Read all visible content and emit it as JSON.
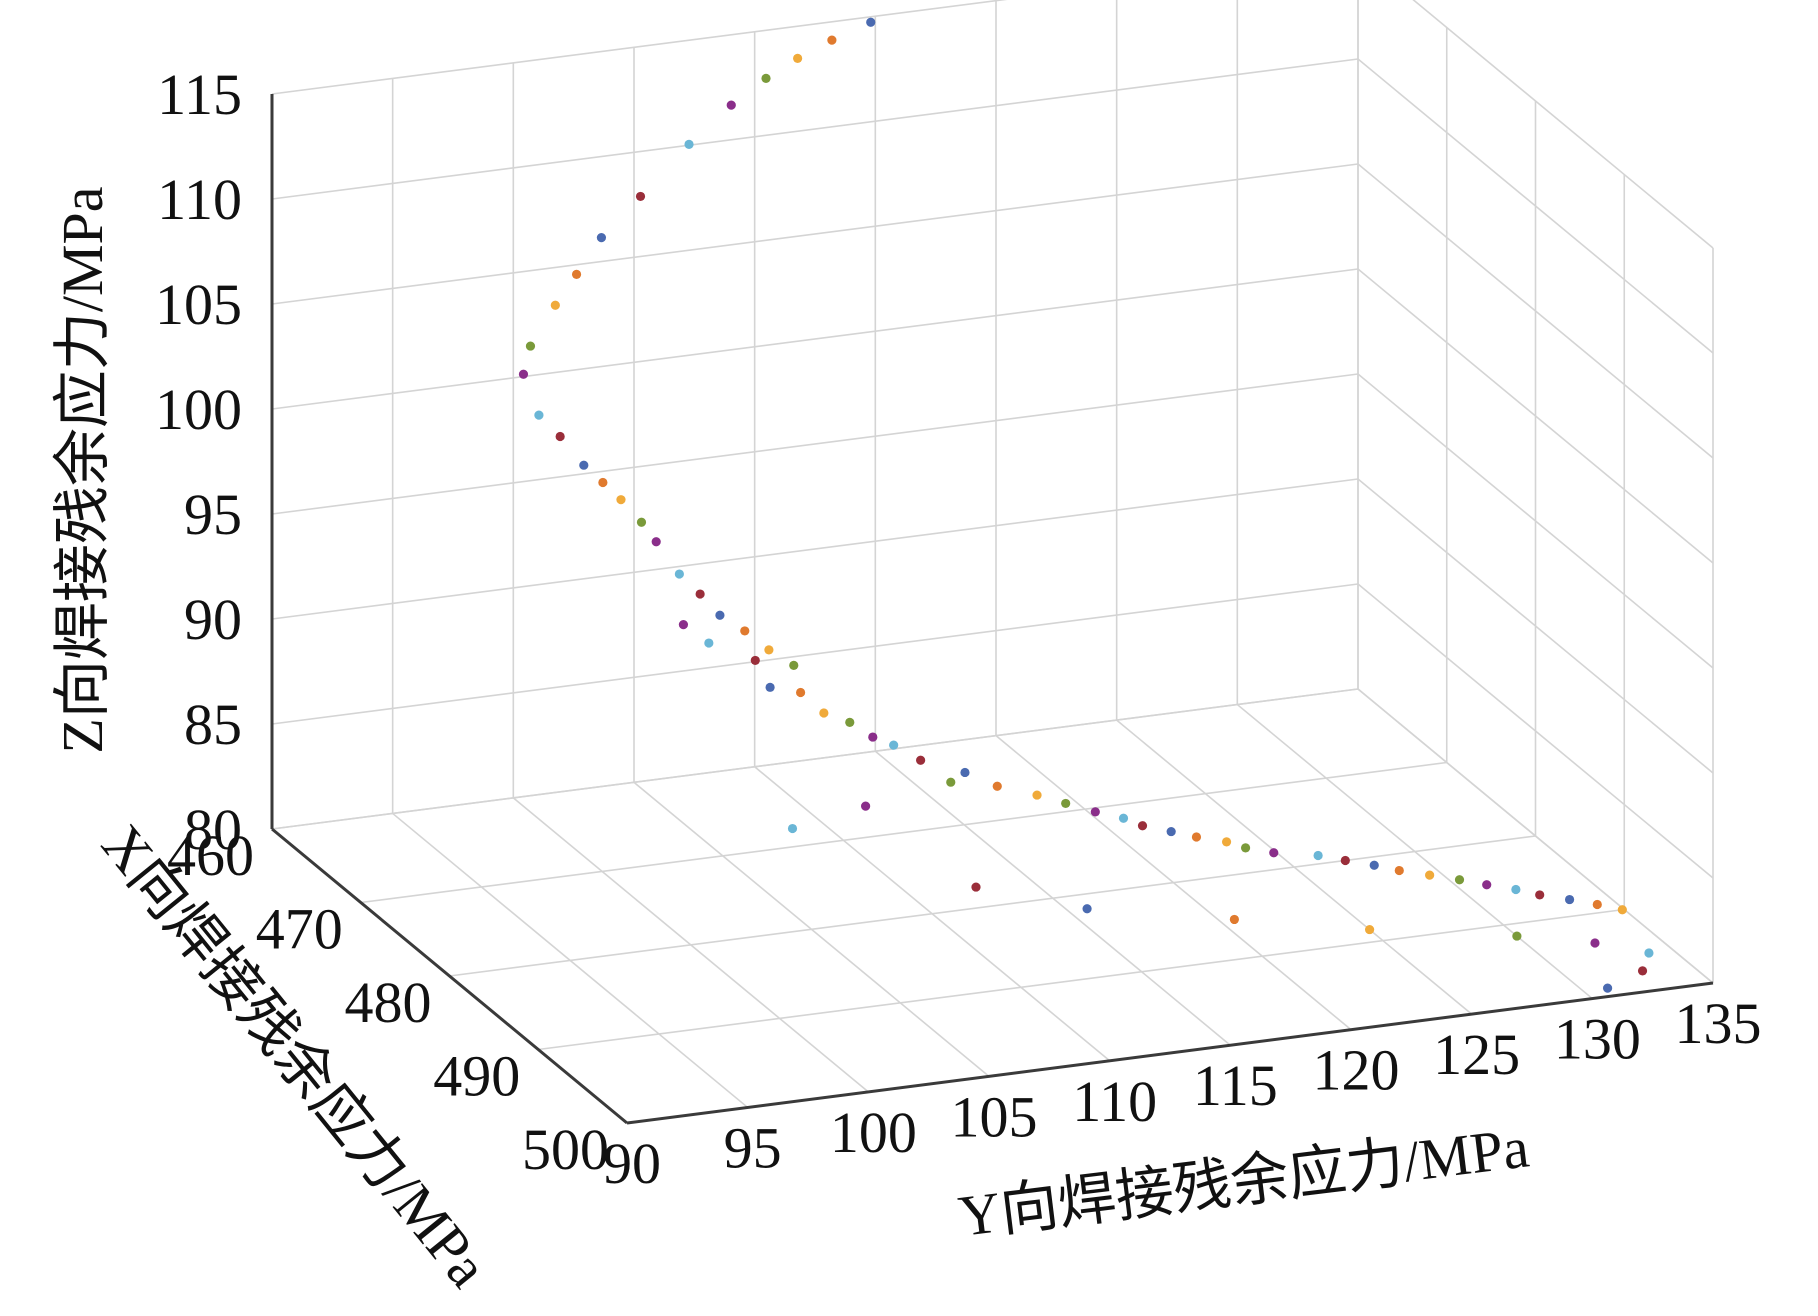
{
  "chart_data": {
    "type": "scatter",
    "dimensions": 3,
    "xlabel": "X向焊接残余应力/MPa",
    "ylabel": "Y向焊接残余应力/MPa",
    "zlabel": "Z向焊接残余应力/MPa",
    "xlim": [
      460,
      500
    ],
    "ylim": [
      90,
      135
    ],
    "zlim": [
      80,
      115
    ],
    "x_ticks": [
      "460",
      "470",
      "480",
      "490",
      "500"
    ],
    "y_ticks": [
      "90",
      "95",
      "100",
      "105",
      "110",
      "115",
      "120",
      "125",
      "130",
      "135"
    ],
    "z_ticks": [
      "80",
      "85",
      "90",
      "95",
      "100",
      "105",
      "110",
      "115"
    ],
    "grid": true,
    "marker_colors": [
      "#4a6ab0",
      "#e07a2e",
      "#f0aa3a",
      "#7a9a3a",
      "#8a2e8a",
      "#6ab6d6",
      "#9a2e3a"
    ],
    "points": [
      [
        460.0,
        114.81,
        114.74
      ],
      [
        460.0,
        113.2,
        114.13
      ],
      [
        460.0,
        111.78,
        113.47
      ],
      [
        460.0,
        110.47,
        112.71
      ],
      [
        460.0,
        109.03,
        111.65
      ],
      [
        460.0,
        107.28,
        110.04
      ],
      [
        460.0,
        105.27,
        107.86
      ],
      [
        460.0,
        103.65,
        106.14
      ],
      [
        460.0,
        102.62,
        104.54
      ],
      [
        460.0,
        101.74,
        103.2
      ],
      [
        460.0,
        100.71,
        101.41
      ],
      [
        460.0,
        100.42,
        100.11
      ],
      [
        460.0,
        101.06,
        98.07
      ],
      [
        460.0,
        101.94,
        96.92
      ],
      [
        460.0,
        102.92,
        95.41
      ],
      [
        460.0,
        103.71,
        94.47
      ],
      [
        460.0,
        104.46,
        93.54
      ],
      [
        460.0,
        105.31,
        92.34
      ],
      [
        460.0,
        105.92,
        91.32
      ],
      [
        460.0,
        106.88,
        89.64
      ],
      [
        460.0,
        107.74,
        88.56
      ],
      [
        460.0,
        108.56,
        87.43
      ],
      [
        460.0,
        109.59,
        86.53
      ],
      [
        460.0,
        110.59,
        85.48
      ],
      [
        460.0,
        111.62,
        84.59
      ],
      [
        461.0,
        106.68,
        87.61
      ],
      [
        461.5,
        107.55,
        86.78
      ],
      [
        462.0,
        109.29,
        85.87
      ],
      [
        462.5,
        109.72,
        84.7
      ],
      [
        463.0,
        110.8,
        84.47
      ],
      [
        463.5,
        111.58,
        83.55
      ],
      [
        464.0,
        112.47,
        83.15
      ],
      [
        464.5,
        113.24,
        82.51
      ],
      [
        465.0,
        113.92,
        82.2
      ],
      [
        466.0,
        114.67,
        81.72
      ],
      [
        467.0,
        116.14,
        81.27
      ],
      [
        468.0,
        117.11,
        80.82
      ],
      [
        469.0,
        118.39,
        80.56
      ],
      [
        470.0,
        119.21,
        80.39
      ],
      [
        471.0,
        120.07,
        80.21
      ],
      [
        472.0,
        120.87,
        80.14
      ],
      [
        473.0,
        121.29,
        80.07
      ],
      [
        474.0,
        122.11,
        80.02
      ],
      [
        475.0,
        122.79,
        80.01
      ],
      [
        476.0,
        123.67,
        80.0
      ],
      [
        477.0,
        124.09,
        80.0
      ],
      [
        478.0,
        124.89,
        80.0
      ],
      [
        479.0,
        126.36,
        80.0
      ],
      [
        480.0,
        127.12,
        80.0
      ],
      [
        481.0,
        127.95,
        80.0
      ],
      [
        482.0,
        128.62,
        80.0
      ],
      [
        483.0,
        129.51,
        80.0
      ],
      [
        484.0,
        130.38,
        80.0
      ],
      [
        485.0,
        131.14,
        80.0
      ],
      [
        486.0,
        131.98,
        80.0
      ],
      [
        487.0,
        132.6,
        80.0
      ],
      [
        488.0,
        133.47,
        80.0
      ],
      [
        489.0,
        134.25,
        80.0
      ],
      [
        490.0,
        134.92,
        80.0
      ],
      [
        468.5,
        115.0,
        81.5
      ],
      [
        472.5,
        110.0,
        82.5
      ],
      [
        476.5,
        105.5,
        83.5
      ],
      [
        479.5,
        112.0,
        80.8
      ],
      [
        482.5,
        115.5,
        80.3
      ],
      [
        485.5,
        120.5,
        80.1
      ],
      [
        488.5,
        125.0,
        80.0
      ],
      [
        491.5,
        130.0,
        80.0
      ],
      [
        493.5,
        132.5,
        80.0
      ],
      [
        495.5,
        134.0,
        80.0
      ],
      [
        497.5,
        133.0,
        80.0
      ],
      [
        499.0,
        131.0,
        80.0
      ]
    ]
  }
}
